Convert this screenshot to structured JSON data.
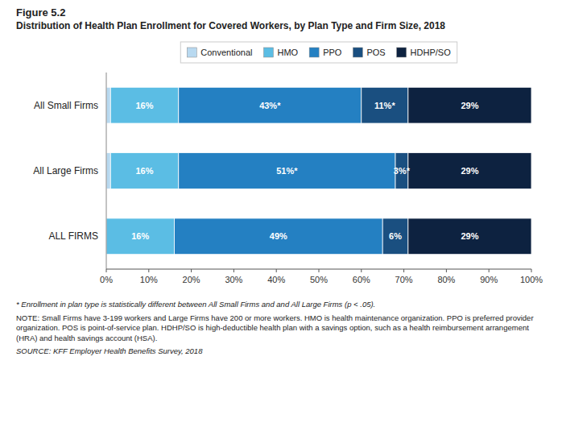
{
  "chart_data": {
    "type": "bar",
    "orientation": "horizontal",
    "stacked": true,
    "title": "Figure 5.2",
    "subtitle": "Distribution of Health Plan Enrollment for Covered Workers, by Plan Type and Firm Size, 2018",
    "categories": [
      "All Small Firms",
      "All Large Firms",
      "ALL FIRMS"
    ],
    "series": [
      {
        "name": "Conventional",
        "color": "#b8d9f0",
        "values": [
          1,
          1,
          0
        ],
        "value_labels": [
          null,
          null,
          null
        ]
      },
      {
        "name": "HMO",
        "color": "#5bbde4",
        "values": [
          16,
          16,
          16
        ],
        "value_labels": [
          "16%",
          "16%",
          "16%"
        ]
      },
      {
        "name": "PPO",
        "color": "#2480c2",
        "values": [
          43,
          51,
          49
        ],
        "value_labels": [
          "43%*",
          "51%*",
          "49%"
        ]
      },
      {
        "name": "POS",
        "color": "#1a4f80",
        "values": [
          11,
          3,
          6
        ],
        "value_labels": [
          "11%*",
          "3%*",
          "6%"
        ]
      },
      {
        "name": "HDHP/SO",
        "color": "#0d2240",
        "values": [
          29,
          29,
          29
        ],
        "value_labels": [
          "29%",
          "29%",
          "29%"
        ]
      }
    ],
    "xlim": [
      0,
      100
    ],
    "xticks": [
      {
        "value": 0,
        "label": "0%"
      },
      {
        "value": 10,
        "label": "10%"
      },
      {
        "value": 20,
        "label": "20%"
      },
      {
        "value": 30,
        "label": "30%"
      },
      {
        "value": 40,
        "label": "40%"
      },
      {
        "value": 50,
        "label": "50%"
      },
      {
        "value": 60,
        "label": "60%"
      },
      {
        "value": 70,
        "label": "70%"
      },
      {
        "value": 80,
        "label": "80%"
      },
      {
        "value": 90,
        "label": "90%"
      },
      {
        "value": 100,
        "label": "100%"
      }
    ],
    "data_labels": true,
    "legend": "top",
    "grid": false,
    "annotations": [
      "* Enrollment in plan type is statistically different between All Small Firms and and All Large Firms (p < .05).",
      "NOTE: Small Firms have 3-199 workers and Large Firms have 200 or more workers. HMO is health maintenance organization. PPO is preferred provider organization. POS is point-of-service plan. HDHP/SO is high-deductible health plan with a savings option, such as a health reimbursement arrangement (HRA) and health savings account (HSA).",
      "SOURCE: KFF Employer Health Benefits Survey, 2018"
    ]
  }
}
